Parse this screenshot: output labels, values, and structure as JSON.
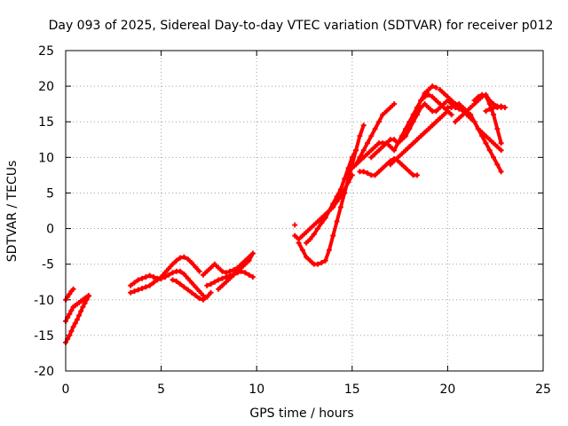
{
  "chart_data": {
    "type": "scatter",
    "title": "Day 093 of 2025, Sidereal Day-to-day VTEC variation (SDTVAR) for receiver p012",
    "xlabel": "GPS time / hours",
    "ylabel": "SDTVAR / TECUs",
    "xlim": [
      0,
      25
    ],
    "ylim": [
      -20,
      25
    ],
    "xticks": [
      0,
      5,
      10,
      15,
      20,
      25
    ],
    "yticks": [
      -20,
      -15,
      -10,
      -5,
      0,
      5,
      10,
      15,
      20,
      25
    ],
    "grid": true,
    "marker": "plus",
    "color": "#ff0000",
    "series": [
      {
        "x": [
          0.0,
          0.1,
          0.2,
          0.3,
          0.4,
          0.5,
          0.6,
          0.7,
          0.8,
          0.9,
          1.0,
          1.1,
          1.2
        ],
        "y": [
          -16.0,
          -15.5,
          -15.0,
          -14.4,
          -13.8,
          -13.3,
          -12.8,
          -12.2,
          -11.6,
          -11.0,
          -10.5,
          -10.0,
          -9.5
        ]
      },
      {
        "x": [
          0.0,
          0.1,
          0.2,
          0.3,
          0.4,
          0.5,
          0.6,
          0.7,
          0.8,
          0.9,
          1.0,
          1.1,
          1.2
        ],
        "y": [
          -13.0,
          -12.5,
          -12.0,
          -11.5,
          -11.0,
          -10.8,
          -10.6,
          -10.4,
          -10.2,
          -10.0,
          -9.8,
          -9.6,
          -9.4
        ]
      },
      {
        "x": [
          0.0,
          0.1,
          0.2,
          0.3,
          0.4
        ],
        "y": [
          -10.0,
          -9.6,
          -9.2,
          -8.8,
          -8.5
        ]
      },
      {
        "x": [
          3.4,
          3.6,
          3.8,
          4.0,
          4.2,
          4.4,
          4.6,
          4.8,
          5.0,
          5.2
        ],
        "y": [
          -8.0,
          -7.6,
          -7.2,
          -7.0,
          -6.8,
          -6.6,
          -6.8,
          -7.0,
          -7.0,
          -6.8
        ]
      },
      {
        "x": [
          3.4,
          3.6,
          3.8,
          4.0,
          4.2,
          4.4,
          4.6,
          4.8,
          5.0
        ],
        "y": [
          -9.0,
          -8.8,
          -8.6,
          -8.4,
          -8.2,
          -8.0,
          -7.6,
          -7.2,
          -7.0
        ]
      },
      {
        "x": [
          5.0,
          5.2,
          5.4,
          5.6,
          5.8,
          6.0,
          6.2,
          6.4,
          6.6,
          6.8,
          7.0
        ],
        "y": [
          -6.8,
          -6.2,
          -5.6,
          -5.0,
          -4.5,
          -4.1,
          -4.0,
          -4.3,
          -4.8,
          -5.4,
          -6.0
        ]
      },
      {
        "x": [
          5.0,
          5.2,
          5.4,
          5.6,
          5.8,
          6.0,
          6.2,
          6.4,
          6.6,
          6.8,
          7.0,
          7.2
        ],
        "y": [
          -7.0,
          -6.8,
          -6.5,
          -6.2,
          -6.0,
          -6.0,
          -6.4,
          -7.0,
          -7.6,
          -8.2,
          -8.8,
          -9.4
        ]
      },
      {
        "x": [
          5.6,
          5.8,
          6.0,
          6.2,
          6.4,
          6.6,
          6.8,
          7.0,
          7.2,
          7.4,
          7.6
        ],
        "y": [
          -7.2,
          -7.4,
          -7.8,
          -8.2,
          -8.6,
          -9.0,
          -9.4,
          -9.8,
          -10.0,
          -9.6,
          -9.0
        ]
      },
      {
        "x": [
          7.2,
          7.4,
          7.6,
          7.8,
          8.0,
          8.2,
          8.4,
          8.6,
          8.8,
          9.0,
          9.2,
          9.4,
          9.6,
          9.8
        ],
        "y": [
          -6.5,
          -6.0,
          -5.5,
          -5.0,
          -5.5,
          -6.0,
          -6.2,
          -6.0,
          -5.8,
          -5.5,
          -5.0,
          -4.5,
          -4.0,
          -3.5
        ]
      },
      {
        "x": [
          7.4,
          7.6,
          7.8,
          8.0,
          8.2,
          8.4,
          8.6,
          8.8,
          9.0,
          9.2,
          9.4,
          9.6,
          9.8
        ],
        "y": [
          -8.0,
          -7.8,
          -7.5,
          -7.2,
          -7.0,
          -6.8,
          -6.6,
          -6.4,
          -6.2,
          -6.0,
          -6.2,
          -6.5,
          -6.8
        ]
      },
      {
        "x": [
          8.0,
          8.2,
          8.4,
          8.6,
          8.8,
          9.0,
          9.2,
          9.4,
          9.6,
          9.8
        ],
        "y": [
          -8.5,
          -8.0,
          -7.5,
          -7.0,
          -6.5,
          -6.0,
          -5.5,
          -5.0,
          -4.5,
          -3.5
        ]
      },
      {
        "x": [
          12.0,
          12.2,
          12.4,
          12.6,
          12.8,
          13.0,
          13.2,
          13.4,
          13.6,
          13.8,
          14.0,
          14.2,
          14.4,
          14.6,
          14.8,
          15.0
        ],
        "y": [
          -1.0,
          -1.5,
          -1.0,
          -0.5,
          0.0,
          0.5,
          1.0,
          1.5,
          2.0,
          2.5,
          3.0,
          3.8,
          4.5,
          5.5,
          6.5,
          7.5
        ]
      },
      {
        "x": [
          12.2,
          12.4,
          12.6,
          12.8,
          13.0,
          13.2,
          13.4,
          13.6,
          13.8,
          14.0,
          14.2,
          14.4,
          14.6
        ],
        "y": [
          -2.0,
          -3.0,
          -4.0,
          -4.5,
          -5.0,
          -5.0,
          -4.8,
          -4.5,
          -3.0,
          -1.0,
          1.0,
          3.0,
          5.0
        ]
      },
      {
        "x": [
          12.6,
          12.8,
          13.0,
          13.2,
          13.4,
          13.6,
          13.8,
          14.0,
          14.2,
          14.4,
          14.6,
          14.8,
          15.0,
          15.2
        ],
        "y": [
          -2.0,
          -1.5,
          -0.8,
          0.0,
          0.8,
          1.5,
          2.5,
          3.5,
          4.5,
          5.5,
          7.0,
          8.5,
          10.0,
          11.0
        ]
      },
      {
        "x": [
          14.6,
          14.8,
          15.0,
          15.2,
          15.4,
          15.6
        ],
        "y": [
          5.0,
          7.0,
          9.0,
          11.0,
          13.0,
          14.5
        ]
      },
      {
        "x": [
          15.0,
          15.2,
          15.4,
          15.6,
          15.8,
          16.0,
          16.2,
          16.4,
          16.6,
          16.8,
          17.0,
          17.2,
          17.4,
          17.6,
          17.8,
          18.0,
          18.2,
          18.4,
          18.6,
          18.8,
          19.0,
          19.2,
          19.4
        ],
        "y": [
          8.5,
          9.0,
          9.5,
          10.0,
          10.5,
          11.0,
          11.5,
          12.0,
          12.0,
          12.0,
          11.5,
          11.0,
          12.0,
          13.0,
          14.0,
          15.0,
          16.0,
          17.0,
          18.0,
          19.0,
          19.5,
          20.0,
          19.8
        ]
      },
      {
        "x": [
          15.2,
          15.4,
          15.6,
          15.8,
          16.0,
          16.2,
          16.4,
          16.6,
          16.8,
          17.0,
          17.2
        ],
        "y": [
          9.0,
          10.0,
          11.0,
          12.0,
          13.0,
          14.0,
          15.0,
          16.0,
          16.5,
          17.0,
          17.5
        ]
      },
      {
        "x": [
          15.4,
          15.6,
          15.8,
          16.0,
          16.2,
          16.4,
          16.6,
          16.8,
          17.0,
          17.2,
          17.4,
          17.6,
          17.8,
          18.0,
          18.2,
          18.4
        ],
        "y": [
          8.0,
          8.0,
          7.8,
          7.5,
          7.5,
          8.0,
          8.5,
          9.0,
          9.5,
          9.8,
          9.5,
          9.0,
          8.5,
          8.0,
          7.5,
          7.5
        ]
      },
      {
        "x": [
          16.0,
          16.2,
          16.4,
          16.6,
          16.8,
          17.0,
          17.2,
          17.4,
          17.6,
          17.8,
          18.0,
          18.2,
          18.4,
          18.6,
          18.8,
          19.0,
          19.2,
          19.4,
          19.6,
          19.8,
          20.0,
          20.2,
          20.4,
          20.6
        ],
        "y": [
          10.0,
          10.5,
          11.0,
          11.5,
          12.0,
          12.5,
          12.5,
          12.0,
          12.5,
          13.0,
          14.0,
          15.0,
          16.0,
          17.0,
          17.5,
          17.0,
          16.5,
          16.5,
          17.0,
          17.5,
          18.0,
          17.5,
          17.0,
          16.8
        ]
      },
      {
        "x": [
          17.0,
          17.2,
          17.4,
          17.6,
          17.8,
          18.0,
          18.2,
          18.4,
          18.6,
          18.8,
          19.0,
          19.2,
          19.4,
          19.6,
          19.8,
          20.0
        ],
        "y": [
          9.0,
          9.5,
          10.0,
          10.5,
          11.0,
          11.5,
          12.0,
          12.5,
          13.0,
          13.5,
          14.0,
          14.5,
          15.0,
          15.5,
          16.0,
          16.5
        ]
      },
      {
        "x": [
          17.8,
          18.0,
          18.2,
          18.4,
          18.6,
          18.8,
          19.0,
          19.2,
          19.4,
          19.6
        ],
        "y": [
          11.0,
          11.5,
          12.0,
          12.5,
          13.0,
          13.5,
          14.0,
          14.5,
          15.0,
          15.5
        ]
      },
      {
        "x": [
          18.6,
          18.8,
          19.0,
          19.2,
          19.4,
          19.6,
          19.8,
          20.0,
          20.2
        ],
        "y": [
          18.0,
          18.5,
          18.8,
          18.5,
          18.0,
          17.5,
          17.0,
          16.5,
          16.0
        ]
      },
      {
        "x": [
          19.6,
          19.8,
          20.0,
          20.2,
          20.4,
          20.6,
          20.8,
          21.0,
          21.2,
          21.4,
          21.6,
          21.8,
          22.0,
          22.2,
          22.4,
          22.6,
          22.8
        ],
        "y": [
          19.5,
          19.0,
          18.5,
          18.0,
          17.5,
          17.0,
          16.5,
          16.0,
          15.5,
          15.0,
          14.0,
          13.0,
          12.0,
          11.0,
          10.0,
          9.0,
          8.0
        ]
      },
      {
        "x": [
          20.0,
          20.2,
          20.4,
          20.6,
          20.8,
          21.0,
          21.2,
          21.4,
          21.6,
          21.8,
          22.0,
          22.2,
          22.4,
          22.6,
          22.8
        ],
        "y": [
          17.0,
          17.0,
          17.5,
          17.5,
          17.0,
          16.5,
          16.0,
          15.0,
          14.0,
          13.5,
          13.0,
          12.5,
          12.0,
          11.5,
          11.0
        ]
      },
      {
        "x": [
          20.4,
          20.6,
          20.8,
          21.0,
          21.2,
          21.4,
          21.6,
          21.8,
          22.0,
          22.2,
          22.4,
          22.6,
          22.8
        ],
        "y": [
          15.0,
          15.5,
          16.0,
          16.5,
          17.0,
          17.5,
          18.0,
          18.5,
          18.8,
          18.0,
          17.5,
          17.2,
          17.0
        ]
      },
      {
        "x": [
          21.4,
          21.6,
          21.8,
          22.0,
          22.2,
          22.4,
          22.6,
          22.8
        ],
        "y": [
          18.0,
          18.5,
          18.8,
          18.6,
          17.5,
          16.0,
          14.0,
          12.0
        ]
      },
      {
        "x": [
          22.0,
          22.2,
          22.4,
          22.6,
          22.8,
          23.0
        ],
        "y": [
          16.5,
          16.8,
          17.0,
          17.0,
          17.2,
          17.0
        ]
      },
      {
        "x": [
          12.0
        ],
        "y": [
          0.5
        ]
      }
    ]
  }
}
